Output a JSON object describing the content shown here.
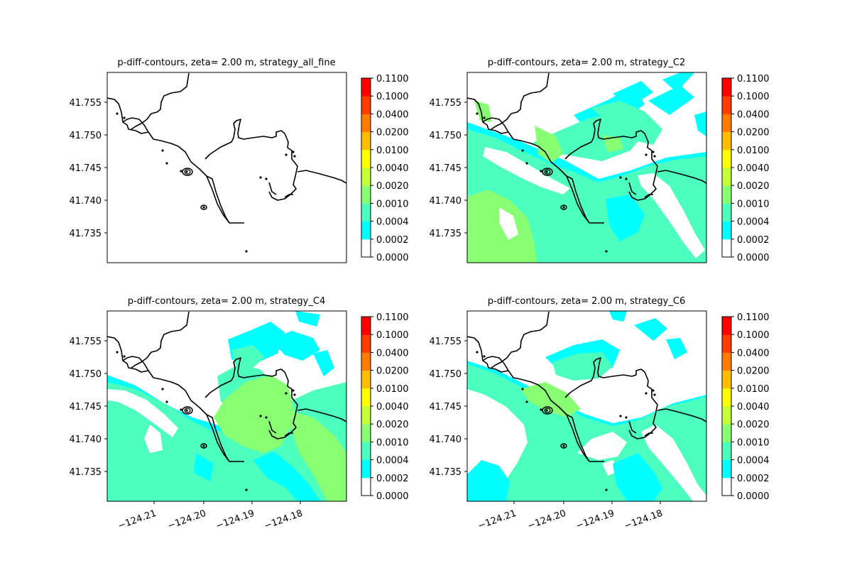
{
  "chart_data": [
    {
      "type": "heatmap",
      "title": "p-diff-contours, zeta= 2.00 m, strategy_all_fine",
      "y_ticks": [
        "41.755",
        "41.750",
        "41.745",
        "41.740",
        "41.735"
      ],
      "x_ticks": [],
      "field": "none",
      "colorbar_levels": [
        "0.0000",
        "0.0002",
        "0.0004",
        "0.0010",
        "0.0020",
        "0.0040",
        "0.0100",
        "0.0200",
        "0.0400",
        "0.1000",
        "0.1100"
      ]
    },
    {
      "type": "heatmap",
      "title": "p-diff-contours, zeta= 2.00 m, strategy_C2",
      "y_ticks": [
        "41.755",
        "41.750",
        "41.745",
        "41.740",
        "41.735"
      ],
      "x_ticks": [],
      "field": "C2",
      "colorbar_levels": [
        "0.0000",
        "0.0002",
        "0.0004",
        "0.0010",
        "0.0020",
        "0.0040",
        "0.0100",
        "0.0200",
        "0.0400",
        "0.1000",
        "0.1100"
      ]
    },
    {
      "type": "heatmap",
      "title": "p-diff-contours, zeta= 2.00 m, strategy_C4",
      "y_ticks": [
        "41.755",
        "41.750",
        "41.745",
        "41.740",
        "41.735"
      ],
      "x_ticks": [
        "−124.21",
        "−124.20",
        "−124.19",
        "−124.18"
      ],
      "field": "C4",
      "colorbar_levels": [
        "0.0000",
        "0.0002",
        "0.0004",
        "0.0010",
        "0.0020",
        "0.0040",
        "0.0100",
        "0.0200",
        "0.0400",
        "0.1000",
        "0.1100"
      ]
    },
    {
      "type": "heatmap",
      "title": "p-diff-contours, zeta= 2.00 m, strategy_C6",
      "y_ticks": [
        "41.755",
        "41.750",
        "41.745",
        "41.740",
        "41.735"
      ],
      "x_ticks": [
        "−124.21",
        "−124.20",
        "−124.19",
        "−124.18"
      ],
      "field": "C6",
      "colorbar_levels": [
        "0.0000",
        "0.0002",
        "0.0004",
        "0.0010",
        "0.0020",
        "0.0040",
        "0.0100",
        "0.0200",
        "0.0400",
        "0.1000",
        "0.1100"
      ]
    }
  ],
  "colors": {
    "bins": [
      "#ffffff",
      "#00ffff",
      "#4dffbe",
      "#89ff74",
      "#c6ff37",
      "#ffff00",
      "#ffbe00",
      "#ff7c00",
      "#ff3d00",
      "#ff0000"
    ],
    "coastline": "#000000"
  }
}
